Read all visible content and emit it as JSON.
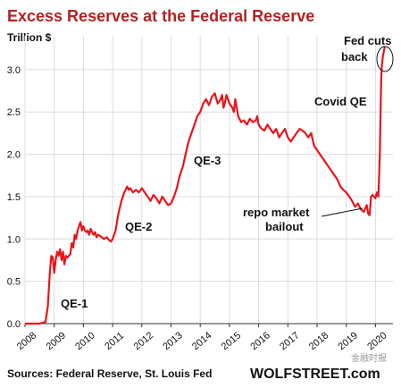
{
  "chart_data": {
    "type": "line",
    "title": "Excess Reserves at the Federal Reserve",
    "unit_label": "Trillion $",
    "ylim": [
      0,
      3.4
    ],
    "y_ticks": [
      "0.0",
      "0.5",
      "1.0",
      "1.5",
      "2.0",
      "2.5",
      "3.0"
    ],
    "x_ticks": [
      "2008",
      "2009",
      "2010",
      "2011",
      "2012",
      "2013",
      "2014",
      "2015",
      "2016",
      "2017",
      "2018",
      "2019",
      "2020"
    ],
    "grid": true,
    "line_color": "#e8161b",
    "series": [
      {
        "x": [
          2008.0,
          2008.5,
          2008.7,
          2008.78,
          2008.85,
          2008.9,
          2008.95,
          2009.0,
          2009.05,
          2009.1,
          2009.15,
          2009.2,
          2009.25,
          2009.3,
          2009.35,
          2009.4,
          2009.45,
          2009.5,
          2009.55,
          2009.6,
          2009.65,
          2009.7,
          2009.75,
          2009.8,
          2009.85,
          2009.9,
          2009.95,
          2010.0,
          2010.05,
          2010.1,
          2010.15,
          2010.2,
          2010.25,
          2010.3,
          2010.35,
          2010.4,
          2010.45,
          2010.5,
          2010.6,
          2010.7,
          2010.8,
          2010.9,
          2010.95,
          2011.0,
          2011.1,
          2011.2,
          2011.3,
          2011.4,
          2011.5,
          2011.55,
          2011.6,
          2011.7,
          2011.8,
          2011.9,
          2012.0,
          2012.1,
          2012.2,
          2012.3,
          2012.4,
          2012.5,
          2012.6,
          2012.7,
          2012.8,
          2012.9,
          2013.0,
          2013.1,
          2013.2,
          2013.3,
          2013.4,
          2013.5,
          2013.6,
          2013.7,
          2013.8,
          2013.9,
          2014.0,
          2014.1,
          2014.2,
          2014.3,
          2014.4,
          2014.5,
          2014.6,
          2014.7,
          2014.75,
          2014.8,
          2014.85,
          2014.9,
          2015.0,
          2015.1,
          2015.15,
          2015.2,
          2015.3,
          2015.4,
          2015.5,
          2015.6,
          2015.7,
          2015.8,
          2015.9,
          2015.95,
          2016.0,
          2016.1,
          2016.2,
          2016.3,
          2016.4,
          2016.5,
          2016.6,
          2016.7,
          2016.8,
          2016.9,
          2017.0,
          2017.1,
          2017.2,
          2017.3,
          2017.4,
          2017.5,
          2017.6,
          2017.7,
          2017.8,
          2017.9,
          2018.0,
          2018.1,
          2018.2,
          2018.3,
          2018.4,
          2018.5,
          2018.6,
          2018.7,
          2018.8,
          2018.9,
          2019.0,
          2019.1,
          2019.2,
          2019.3,
          2019.4,
          2019.5,
          2019.6,
          2019.7,
          2019.75,
          2019.8,
          2019.85,
          2019.9,
          2020.0,
          2020.05,
          2020.1,
          2020.15,
          2020.18,
          2020.2,
          2020.22,
          2020.25,
          2020.28,
          2020.32
        ],
        "y": [
          0.0,
          0.0,
          0.02,
          0.2,
          0.6,
          0.8,
          0.78,
          0.6,
          0.75,
          0.85,
          0.8,
          0.88,
          0.75,
          0.85,
          0.7,
          0.8,
          0.78,
          0.8,
          0.82,
          0.95,
          0.9,
          1.05,
          1.0,
          1.1,
          1.15,
          1.2,
          1.1,
          1.15,
          1.1,
          1.08,
          1.1,
          1.05,
          1.12,
          1.08,
          1.05,
          1.08,
          1.02,
          1.05,
          1.03,
          1.0,
          1.02,
          0.98,
          0.97,
          1.0,
          1.1,
          1.3,
          1.45,
          1.55,
          1.62,
          1.58,
          1.6,
          1.55,
          1.58,
          1.55,
          1.6,
          1.55,
          1.5,
          1.45,
          1.52,
          1.48,
          1.42,
          1.5,
          1.45,
          1.4,
          1.42,
          1.5,
          1.6,
          1.75,
          1.85,
          2.0,
          2.15,
          2.25,
          2.35,
          2.45,
          2.5,
          2.6,
          2.65,
          2.58,
          2.68,
          2.72,
          2.6,
          2.65,
          2.7,
          2.55,
          2.62,
          2.7,
          2.6,
          2.55,
          2.5,
          2.65,
          2.45,
          2.38,
          2.4,
          2.35,
          2.42,
          2.38,
          2.4,
          2.45,
          2.35,
          2.3,
          2.28,
          2.35,
          2.3,
          2.25,
          2.3,
          2.2,
          2.25,
          2.3,
          2.2,
          2.15,
          2.2,
          2.25,
          2.3,
          2.28,
          2.25,
          2.2,
          2.25,
          2.1,
          2.05,
          2.0,
          1.95,
          1.9,
          1.85,
          1.8,
          1.75,
          1.7,
          1.62,
          1.58,
          1.55,
          1.5,
          1.45,
          1.38,
          1.42,
          1.35,
          1.32,
          1.4,
          1.3,
          1.28,
          1.5,
          1.52,
          1.48,
          1.55,
          1.5,
          2.0,
          2.6,
          2.9,
          3.05,
          3.15,
          3.2,
          3.27
        ]
      }
    ],
    "annotations": [
      "QE-1",
      "QE-2",
      "QE-3",
      "repo market",
      "bailout",
      "Covid QE",
      "Fed cuts",
      "back"
    ],
    "source": "Sources: Federal Reserve, St. Louis Fed",
    "brand": "WOLFSTREET.com",
    "watermark": "金融时报"
  }
}
